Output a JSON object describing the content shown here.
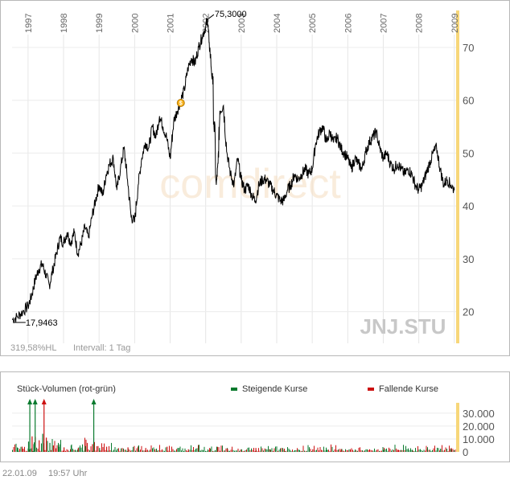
{
  "chart_data": [
    {
      "type": "line",
      "symbol": "JNJ.STU",
      "watermark": "comdirect",
      "years": [
        "1997",
        "1998",
        "1999",
        "2000",
        "2001",
        "2002",
        "2003",
        "2004",
        "2005",
        "2006",
        "2007",
        "2008",
        "2009"
      ],
      "ylim": [
        14,
        77
      ],
      "yticks": [
        "20",
        "30",
        "40",
        "50",
        "60",
        "70"
      ],
      "xlim": [
        1996.55,
        2009.05
      ],
      "max_label": "75,3000",
      "max_point": [
        2002.05,
        75.3
      ],
      "min_label": "17,9463",
      "min_point": [
        1996.75,
        17.95
      ],
      "dividend_marker": [
        2001.3,
        59.5
      ],
      "range_text": "319,58%HL",
      "interval_text": "Intervall: 1 Tag",
      "series": [
        {
          "x": [
            1996.55,
            1996.7,
            1996.85,
            1997.0,
            1997.1,
            1997.2,
            1997.3,
            1997.4,
            1997.5,
            1997.6,
            1997.7,
            1997.8,
            1997.9,
            1998.0,
            1998.1,
            1998.2,
            1998.3,
            1998.4,
            1998.5,
            1998.6,
            1998.7,
            1998.8,
            1998.9,
            1999.0,
            1999.1,
            1999.2,
            1999.3,
            1999.4,
            1999.5,
            1999.6,
            1999.7,
            1999.8,
            1999.9,
            2000.0,
            2000.1,
            2000.2,
            2000.3,
            2000.4,
            2000.5,
            2000.6,
            2000.7,
            2000.8,
            2000.9,
            2001.0,
            2001.1,
            2001.2,
            2001.3,
            2001.4,
            2001.5,
            2001.6,
            2001.7,
            2001.8,
            2001.9,
            2002.0,
            2002.05,
            2002.1,
            2002.2,
            2002.3,
            2002.35,
            2002.4,
            2002.5,
            2002.6,
            2002.7,
            2002.8,
            2002.9,
            2003.0,
            2003.1,
            2003.2,
            2003.3,
            2003.4,
            2003.5,
            2003.6,
            2003.7,
            2003.8,
            2003.9,
            2004.0,
            2004.1,
            2004.2,
            2004.3,
            2004.4,
            2004.5,
            2004.6,
            2004.7,
            2004.8,
            2004.9,
            2005.0,
            2005.1,
            2005.2,
            2005.3,
            2005.4,
            2005.5,
            2005.6,
            2005.7,
            2005.8,
            2005.9,
            2006.0,
            2006.1,
            2006.2,
            2006.3,
            2006.4,
            2006.5,
            2006.6,
            2006.7,
            2006.8,
            2006.9,
            2007.0,
            2007.1,
            2007.2,
            2007.3,
            2007.4,
            2007.5,
            2007.6,
            2007.7,
            2007.8,
            2007.9,
            2008.0,
            2008.1,
            2008.2,
            2008.3,
            2008.4,
            2008.5,
            2008.6,
            2008.7,
            2008.8,
            2008.9,
            2009.0
          ],
          "values": [
            18.5,
            19,
            20,
            21,
            23,
            26,
            28,
            29,
            27,
            25,
            28,
            31,
            34,
            33,
            35,
            33,
            35,
            31,
            33,
            36,
            34,
            38,
            41,
            44,
            42,
            46,
            48,
            49,
            43,
            47,
            51,
            45,
            38,
            37,
            44,
            49,
            52,
            51,
            55,
            53,
            57,
            55,
            53,
            49,
            56,
            58,
            60,
            62,
            66,
            68,
            67,
            70,
            72,
            74,
            75.3,
            71,
            63,
            44,
            48,
            58,
            59,
            50,
            46,
            44,
            49,
            45,
            43,
            44,
            42,
            41,
            44,
            45,
            45,
            44,
            43,
            42,
            41,
            41,
            43,
            44,
            46,
            45,
            46,
            47,
            46,
            47,
            52,
            54,
            55,
            52,
            54,
            52,
            53,
            51,
            50,
            49,
            47,
            49,
            48,
            47,
            50,
            52,
            53,
            54,
            51,
            49,
            50,
            48,
            47,
            48,
            47,
            46,
            47,
            46,
            44,
            43,
            44,
            46,
            48,
            50,
            51,
            47,
            44,
            45,
            44,
            43
          ],
          "color": "#000000"
        }
      ]
    },
    {
      "type": "bar",
      "title": "Stück-Volumen (rot-grün)",
      "legend": [
        {
          "name": "Steigende Kurse",
          "color": "#0a7a2e"
        },
        {
          "name": "Fallende Kurse",
          "color": "#cc1111"
        }
      ],
      "ylim": [
        0,
        38000
      ],
      "yticks": [
        "0",
        "10.000",
        "20.000",
        "30.000"
      ],
      "xlim": [
        1996.55,
        2009.05
      ],
      "spikes": [
        {
          "x": 1997.05,
          "color": "#0a7a2e"
        },
        {
          "x": 1997.2,
          "color": "#0a7a2e"
        },
        {
          "x": 1997.45,
          "color": "#cc1111"
        },
        {
          "x": 1998.85,
          "color": "#0a7a2e"
        }
      ],
      "bars": [
        {
          "x": 1996.7,
          "v": 3000
        },
        {
          "x": 1996.85,
          "v": 2500
        },
        {
          "x": 1997.0,
          "v": 8000
        },
        {
          "x": 1997.1,
          "v": 12000
        },
        {
          "x": 1997.15,
          "v": 6000
        },
        {
          "x": 1997.3,
          "v": 9000
        },
        {
          "x": 1997.4,
          "v": 14000
        },
        {
          "x": 1997.5,
          "v": 11000
        },
        {
          "x": 1997.6,
          "v": 7000
        },
        {
          "x": 1997.7,
          "v": 5000
        },
        {
          "x": 1997.85,
          "v": 4000
        },
        {
          "x": 1998.0,
          "v": 3500
        },
        {
          "x": 1998.2,
          "v": 5000
        },
        {
          "x": 1998.4,
          "v": 3000
        },
        {
          "x": 1998.6,
          "v": 4500
        },
        {
          "x": 1998.8,
          "v": 6000
        },
        {
          "x": 1999.0,
          "v": 3000
        },
        {
          "x": 1999.2,
          "v": 4000
        },
        {
          "x": 1999.5,
          "v": 2500
        },
        {
          "x": 1999.8,
          "v": 3500
        },
        {
          "x": 2000.1,
          "v": 5000
        },
        {
          "x": 2000.3,
          "v": 3000
        },
        {
          "x": 2000.6,
          "v": 2500
        },
        {
          "x": 2000.9,
          "v": 4000
        },
        {
          "x": 2001.2,
          "v": 3000
        },
        {
          "x": 2001.5,
          "v": 2000
        },
        {
          "x": 2001.8,
          "v": 5500
        },
        {
          "x": 2002.1,
          "v": 3000
        },
        {
          "x": 2002.3,
          "v": 4000
        },
        {
          "x": 2002.6,
          "v": 2500
        },
        {
          "x": 2003.0,
          "v": 2000
        },
        {
          "x": 2003.4,
          "v": 3000
        },
        {
          "x": 2003.8,
          "v": 2000
        },
        {
          "x": 2004.2,
          "v": 2500
        },
        {
          "x": 2004.6,
          "v": 1800
        },
        {
          "x": 2005.0,
          "v": 2000
        },
        {
          "x": 2005.4,
          "v": 1500
        },
        {
          "x": 2005.8,
          "v": 2200
        },
        {
          "x": 2006.2,
          "v": 1800
        },
        {
          "x": 2006.6,
          "v": 2000
        },
        {
          "x": 2007.0,
          "v": 1500
        },
        {
          "x": 2007.4,
          "v": 1800
        },
        {
          "x": 2007.8,
          "v": 1600
        },
        {
          "x": 2008.2,
          "v": 2000
        },
        {
          "x": 2008.6,
          "v": 2500
        },
        {
          "x": 2008.9,
          "v": 3000
        }
      ]
    }
  ],
  "footer": {
    "date": "22.01.09",
    "time": "19:57 Uhr"
  }
}
